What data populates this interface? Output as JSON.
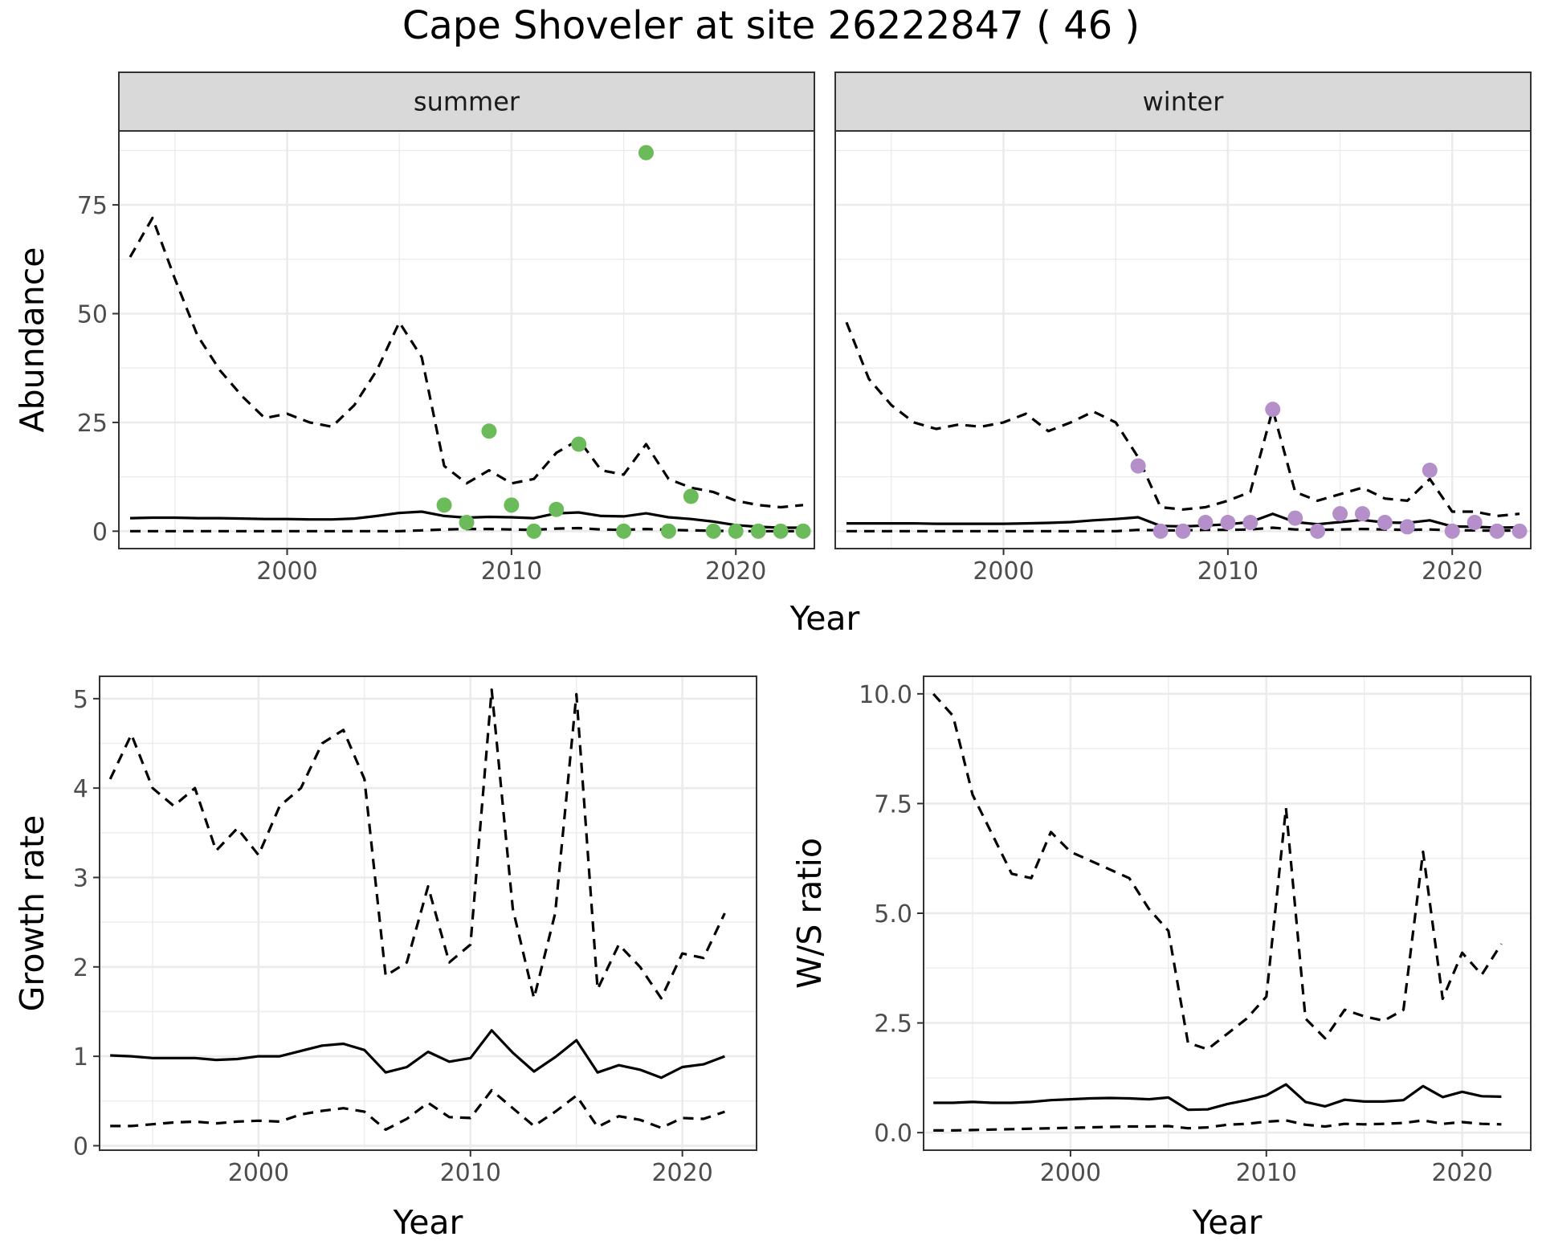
{
  "title": "Cape Shoveler at site 26222847 ( 46 )",
  "chart_data": [
    {
      "type": "line",
      "facets": [
        "summer",
        "winter"
      ],
      "xlabel": "Year",
      "ylabel": "Abundance",
      "xlim": [
        1992.5,
        2023.5
      ],
      "ylim": [
        -4,
        92
      ],
      "xticks": [
        2000,
        2010,
        2020
      ],
      "yticks": [
        0,
        25,
        50,
        75
      ],
      "grid": true,
      "panels": [
        {
          "facet": "summer",
          "point_color": "#6cbb5a",
          "lines": [
            {
              "style": "dashed",
              "x": [
                1993,
                1994,
                1995,
                1996,
                1997,
                1998,
                1999,
                2000,
                2001,
                2002,
                2003,
                2004,
                2005,
                2006,
                2007,
                2008,
                2009,
                2010,
                2011,
                2012,
                2013,
                2014,
                2015,
                2016,
                2017,
                2018,
                2019,
                2020,
                2021,
                2022,
                2023
              ],
              "y": [
                63,
                72,
                58,
                45,
                37,
                31,
                26,
                27,
                25,
                24,
                29,
                37,
                48,
                40,
                15,
                11,
                14,
                11,
                12,
                18,
                21,
                14,
                13,
                20,
                12,
                10,
                9,
                7,
                6,
                5.5,
                6
              ]
            },
            {
              "style": "solid",
              "x": [
                1993,
                1994,
                1995,
                1996,
                1997,
                1998,
                1999,
                2000,
                2001,
                2002,
                2003,
                2004,
                2005,
                2006,
                2007,
                2008,
                2009,
                2010,
                2011,
                2012,
                2013,
                2014,
                2015,
                2016,
                2017,
                2018,
                2019,
                2020,
                2021,
                2022,
                2023
              ],
              "y": [
                3,
                3.1,
                3.1,
                3,
                3,
                2.9,
                2.8,
                2.8,
                2.7,
                2.7,
                2.9,
                3.5,
                4.2,
                4.5,
                3.5,
                3.1,
                3.3,
                3.2,
                3,
                4.1,
                4.3,
                3.5,
                3.4,
                4.1,
                3.2,
                2.8,
                2.2,
                1.4,
                1,
                0.8,
                0.8
              ]
            },
            {
              "style": "dashed",
              "x": [
                1993,
                1994,
                1995,
                1996,
                1997,
                1998,
                1999,
                2000,
                2001,
                2002,
                2003,
                2004,
                2005,
                2006,
                2007,
                2008,
                2009,
                2010,
                2011,
                2012,
                2013,
                2014,
                2015,
                2016,
                2017,
                2018,
                2019,
                2020,
                2021,
                2022,
                2023
              ],
              "y": [
                0,
                0,
                0,
                0,
                0,
                0,
                0,
                0,
                0,
                0,
                0,
                0,
                0,
                0.2,
                0.4,
                0.5,
                0.5,
                0.4,
                0.3,
                0.6,
                0.7,
                0.4,
                0.3,
                0.5,
                0.3,
                0.2,
                0.1,
                0,
                0,
                0,
                0
              ]
            }
          ],
          "points": {
            "x": [
              2007,
              2008,
              2009,
              2010,
              2011,
              2012,
              2013,
              2015,
              2016,
              2017,
              2018,
              2019,
              2020,
              2021,
              2022,
              2023
            ],
            "y": [
              6,
              2,
              23,
              6,
              0,
              5,
              20,
              0,
              87,
              0,
              8,
              0,
              0,
              0,
              0,
              0
            ]
          }
        },
        {
          "facet": "winter",
          "point_color": "#b48fc9",
          "lines": [
            {
              "style": "dashed",
              "x": [
                1993,
                1994,
                1995,
                1996,
                1997,
                1998,
                1999,
                2000,
                2001,
                2002,
                2003,
                2004,
                2005,
                2006,
                2007,
                2008,
                2009,
                2010,
                2011,
                2012,
                2013,
                2014,
                2015,
                2016,
                2017,
                2018,
                2019,
                2020,
                2021,
                2022,
                2023
              ],
              "y": [
                48,
                35,
                29,
                25,
                23.5,
                24.5,
                24,
                25,
                27,
                23,
                25,
                27.5,
                25,
                17,
                5.5,
                5,
                5.5,
                7,
                9,
                28,
                9,
                7,
                8.5,
                10,
                7.5,
                7,
                12,
                4.5,
                4.5,
                3.5,
                4
              ]
            },
            {
              "style": "solid",
              "x": [
                1993,
                1994,
                1995,
                1996,
                1997,
                1998,
                1999,
                2000,
                2001,
                2002,
                2003,
                2004,
                2005,
                2006,
                2007,
                2008,
                2009,
                2010,
                2011,
                2012,
                2013,
                2014,
                2015,
                2016,
                2017,
                2018,
                2019,
                2020,
                2021,
                2022,
                2023
              ],
              "y": [
                1.8,
                1.8,
                1.8,
                1.8,
                1.7,
                1.7,
                1.7,
                1.7,
                1.8,
                1.9,
                2.1,
                2.5,
                2.8,
                3.2,
                1.2,
                1.1,
                1.3,
                1.6,
                2.1,
                4,
                2.1,
                1.6,
                2.1,
                2.6,
                2,
                1.9,
                2.5,
                1.1,
                1,
                0.8,
                0.9
              ]
            },
            {
              "style": "dashed",
              "x": [
                1993,
                1994,
                1995,
                1996,
                1997,
                1998,
                1999,
                2000,
                2001,
                2002,
                2003,
                2004,
                2005,
                2006,
                2007,
                2008,
                2009,
                2010,
                2011,
                2012,
                2013,
                2014,
                2015,
                2016,
                2017,
                2018,
                2019,
                2020,
                2021,
                2022,
                2023
              ],
              "y": [
                0,
                0,
                0,
                0,
                0,
                0,
                0,
                0,
                0,
                0,
                0,
                0,
                0,
                0.3,
                0.2,
                0.2,
                0.3,
                0.3,
                0.4,
                0.8,
                0.4,
                0.3,
                0.4,
                0.5,
                0.4,
                0.3,
                0.4,
                0.2,
                0.2,
                0.1,
                0.2
              ]
            }
          ],
          "points": {
            "x": [
              2006,
              2007,
              2008,
              2009,
              2010,
              2011,
              2012,
              2013,
              2014,
              2015,
              2016,
              2017,
              2018,
              2019,
              2020,
              2021,
              2022,
              2023
            ],
            "y": [
              15,
              0,
              0,
              2,
              2,
              2,
              28,
              3,
              0,
              4,
              4,
              2,
              1,
              14,
              0,
              2,
              0,
              0
            ]
          }
        }
      ]
    },
    {
      "type": "line",
      "xlabel": "Year",
      "ylabel": "Growth rate",
      "xlim": [
        1992.5,
        2023.5
      ],
      "ylim": [
        -0.05,
        5.25
      ],
      "xticks": [
        2000,
        2010,
        2020
      ],
      "yticks": [
        0,
        1,
        2,
        3,
        4,
        5
      ],
      "grid": true,
      "lines": [
        {
          "style": "dashed",
          "x": [
            1993,
            1994,
            1995,
            1996,
            1997,
            1998,
            1999,
            2000,
            2001,
            2002,
            2003,
            2004,
            2005,
            2006,
            2007,
            2008,
            2009,
            2010,
            2011,
            2012,
            2013,
            2014,
            2015,
            2016,
            2017,
            2018,
            2019,
            2020,
            2021,
            2022
          ],
          "y": [
            4.1,
            4.6,
            4,
            3.8,
            4,
            3.3,
            3.55,
            3.25,
            3.8,
            4,
            4.5,
            4.65,
            4.1,
            1.9,
            2.05,
            2.9,
            2.05,
            2.25,
            5.1,
            2.65,
            1.65,
            2.6,
            5.05,
            1.75,
            2.25,
            2,
            1.65,
            2.15,
            2.1,
            2.6
          ]
        },
        {
          "style": "solid",
          "x": [
            1993,
            1994,
            1995,
            1996,
            1997,
            1998,
            1999,
            2000,
            2001,
            2002,
            2003,
            2004,
            2005,
            2006,
            2007,
            2008,
            2009,
            2010,
            2011,
            2012,
            2013,
            2014,
            2015,
            2016,
            2017,
            2018,
            2019,
            2020,
            2021,
            2022
          ],
          "y": [
            1.01,
            1,
            0.98,
            0.98,
            0.98,
            0.96,
            0.97,
            1,
            1,
            1.06,
            1.12,
            1.14,
            1.07,
            0.82,
            0.88,
            1.05,
            0.94,
            0.98,
            1.29,
            1.04,
            0.83,
            0.99,
            1.18,
            0.82,
            0.9,
            0.85,
            0.76,
            0.88,
            0.91,
            1
          ]
        },
        {
          "style": "dashed",
          "x": [
            1993,
            1994,
            1995,
            1996,
            1997,
            1998,
            1999,
            2000,
            2001,
            2002,
            2003,
            2004,
            2005,
            2006,
            2007,
            2008,
            2009,
            2010,
            2011,
            2012,
            2013,
            2014,
            2015,
            2016,
            2017,
            2018,
            2019,
            2020,
            2021,
            2022
          ],
          "y": [
            0.22,
            0.22,
            0.24,
            0.26,
            0.27,
            0.25,
            0.27,
            0.28,
            0.27,
            0.35,
            0.39,
            0.42,
            0.38,
            0.18,
            0.3,
            0.48,
            0.32,
            0.31,
            0.62,
            0.42,
            0.22,
            0.38,
            0.56,
            0.21,
            0.33,
            0.29,
            0.2,
            0.31,
            0.3,
            0.38
          ]
        }
      ]
    },
    {
      "type": "line",
      "xlabel": "Year",
      "ylabel": "W/S ratio",
      "xlim": [
        1992.5,
        2023.5
      ],
      "ylim": [
        -0.4,
        10.4
      ],
      "xticks": [
        2000,
        2010,
        2020
      ],
      "yticks": [
        0.0,
        2.5,
        5.0,
        7.5,
        10.0
      ],
      "ytick_labels": [
        "0.0",
        "2.5",
        "5.0",
        "7.5",
        "10.0"
      ],
      "grid": true,
      "lines": [
        {
          "style": "dashed",
          "x": [
            1993,
            1994,
            1995,
            1996,
            1997,
            1998,
            1999,
            2000,
            2001,
            2002,
            2003,
            2004,
            2005,
            2006,
            2007,
            2008,
            2009,
            2010,
            2011,
            2012,
            2013,
            2014,
            2015,
            2016,
            2017,
            2018,
            2019,
            2020,
            2021,
            2022
          ],
          "y": [
            10,
            9.5,
            7.7,
            6.8,
            5.9,
            5.8,
            6.85,
            6.4,
            6.2,
            6,
            5.8,
            5.1,
            4.6,
            2.05,
            1.9,
            2.25,
            2.6,
            3.1,
            7.4,
            2.6,
            2.15,
            2.8,
            2.65,
            2.55,
            2.8,
            6.4,
            3.05,
            4.1,
            3.6,
            4.3
          ]
        },
        {
          "style": "solid",
          "x": [
            1993,
            1994,
            1995,
            1996,
            1997,
            1998,
            1999,
            2000,
            2001,
            2002,
            2003,
            2004,
            2005,
            2006,
            2007,
            2008,
            2009,
            2010,
            2011,
            2012,
            2013,
            2014,
            2015,
            2016,
            2017,
            2018,
            2019,
            2020,
            2021,
            2022
          ],
          "y": [
            0.68,
            0.68,
            0.7,
            0.68,
            0.68,
            0.7,
            0.74,
            0.76,
            0.78,
            0.79,
            0.78,
            0.76,
            0.8,
            0.52,
            0.53,
            0.65,
            0.74,
            0.85,
            1.1,
            0.7,
            0.6,
            0.75,
            0.71,
            0.71,
            0.74,
            1.06,
            0.81,
            0.93,
            0.83,
            0.82
          ]
        },
        {
          "style": "dashed",
          "x": [
            1993,
            1994,
            1995,
            1996,
            1997,
            1998,
            1999,
            2000,
            2001,
            2002,
            2003,
            2004,
            2005,
            2006,
            2007,
            2008,
            2009,
            2010,
            2011,
            2012,
            2013,
            2014,
            2015,
            2016,
            2017,
            2018,
            2019,
            2020,
            2021,
            2022
          ],
          "y": [
            0.05,
            0.05,
            0.06,
            0.07,
            0.08,
            0.09,
            0.1,
            0.11,
            0.12,
            0.13,
            0.14,
            0.14,
            0.15,
            0.1,
            0.12,
            0.18,
            0.2,
            0.25,
            0.28,
            0.18,
            0.14,
            0.2,
            0.19,
            0.2,
            0.22,
            0.28,
            0.2,
            0.24,
            0.2,
            0.19
          ]
        }
      ]
    }
  ]
}
